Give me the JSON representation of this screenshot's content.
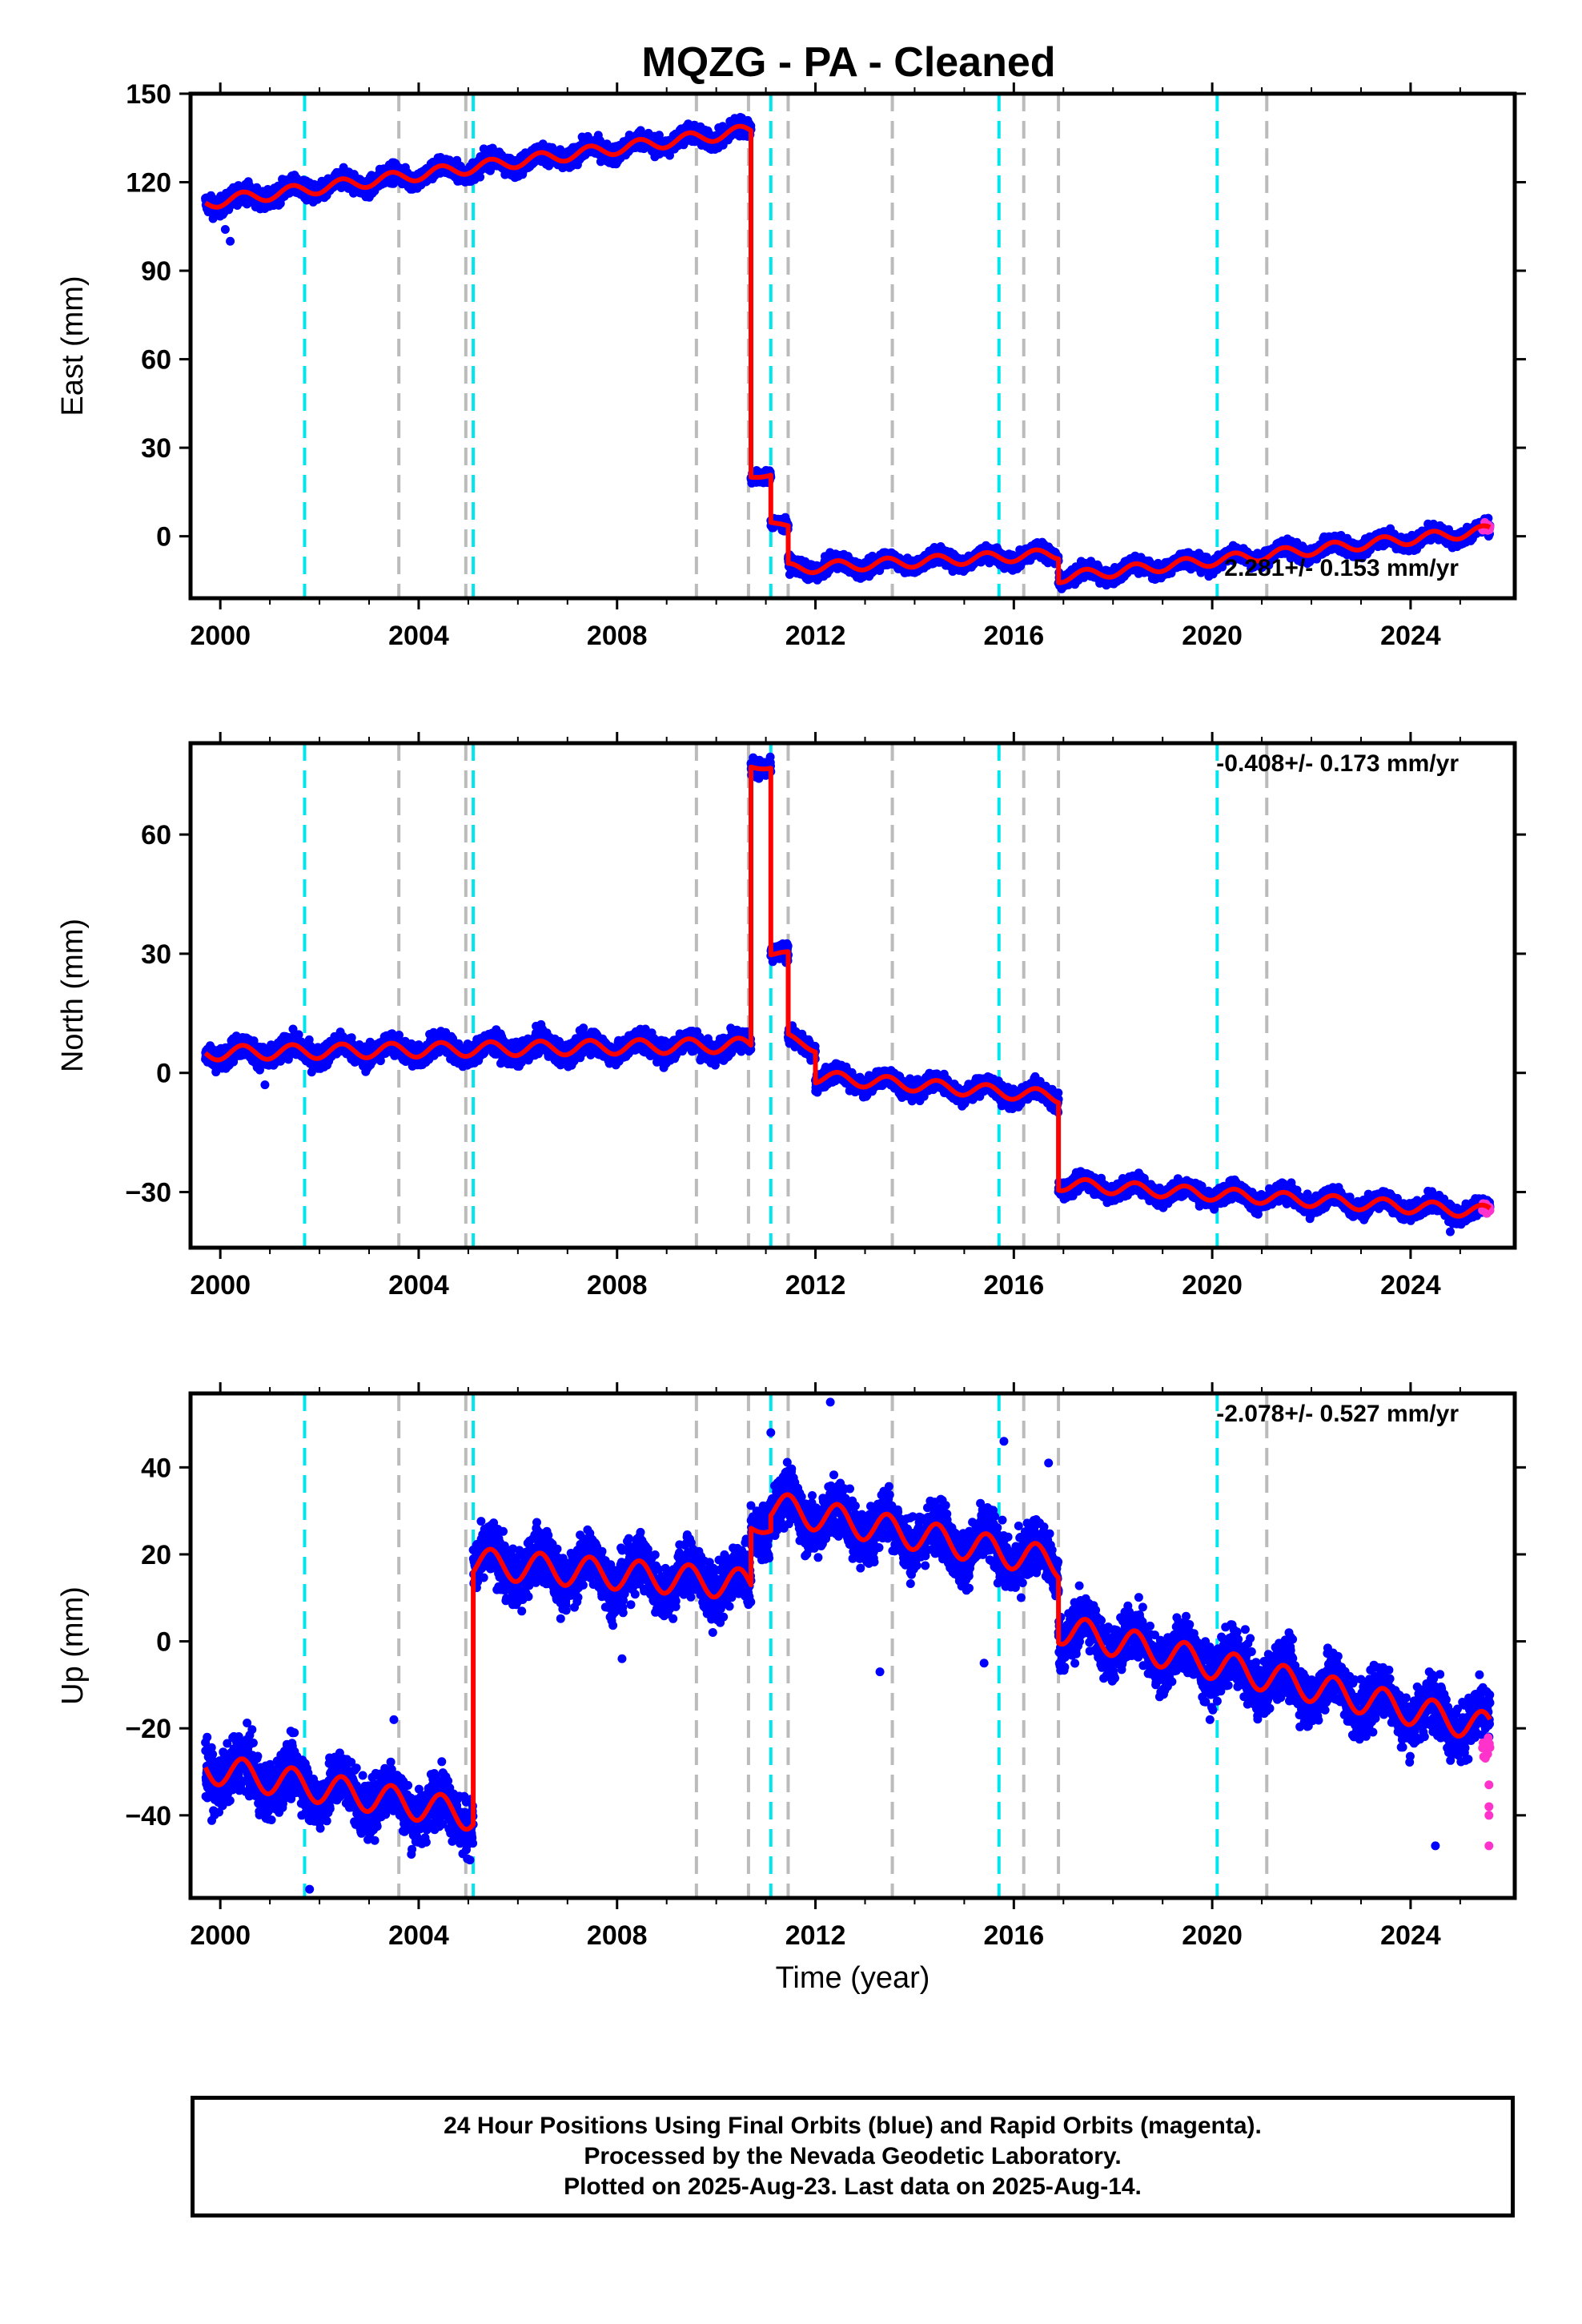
{
  "title": "MQZG  - PA - Cleaned",
  "colors": {
    "final": "#0000ff",
    "rapid": "#ff33cc",
    "model": "#ff0000",
    "equipment": "#00e5ee",
    "event": "#bbbbbb"
  },
  "footer": {
    "line1": "24 Hour Positions Using Final Orbits (blue) and Rapid Orbits (magenta).",
    "line2": "Processed by the Nevada Geodetic Laboratory.",
    "line3": "Plotted on 2025-Aug-23. Last data on 2025-Aug-14."
  },
  "chart_data": [
    {
      "type": "scatter",
      "ylabel": "East (mm)",
      "xlabel": "",
      "xlim": [
        1999.4,
        2026.1
      ],
      "ylim": [
        -21,
        150
      ],
      "xticks": [
        2000,
        2004,
        2008,
        2012,
        2016,
        2020,
        2024
      ],
      "yticks": [
        0,
        30,
        60,
        90,
        120,
        150
      ],
      "rate_text": "2.281+/- 0.153 mm/yr",
      "equipment_changes": [
        2001.7,
        2005.1,
        2011.1,
        2015.7,
        2020.1
      ],
      "events": [
        2003.6,
        2004.95,
        2009.6,
        2010.65,
        2011.45,
        2013.55,
        2016.2,
        2016.9,
        2021.1
      ],
      "model": {
        "segments": [
          {
            "t0": 1999.7,
            "t1": 2010.7,
            "y0": 113,
            "y1": 137.5,
            "amp": 2.0,
            "noise": 2.2
          },
          {
            "t0": 2010.7,
            "t1": 2011.1,
            "y0": 20,
            "y1": 21,
            "amp": 0.5,
            "noise": 1.5
          },
          {
            "t0": 2011.1,
            "t1": 2011.45,
            "y0": 5,
            "y1": 3,
            "amp": 0.5,
            "noise": 1.5
          },
          {
            "t0": 2011.45,
            "t1": 2016.9,
            "y0": -11,
            "y1": -6,
            "amp": 1.8,
            "noise": 1.8
          },
          {
            "t0": 2016.9,
            "t1": 2025.6,
            "y0": -14,
            "y1": 2,
            "amp": 1.8,
            "noise": 1.8
          }
        ],
        "outliers": [
          [
            2000.2,
            100
          ],
          [
            2000.1,
            104
          ]
        ]
      },
      "rapid": {
        "t0": 2025.45,
        "t1": 2025.6,
        "y": 3,
        "spread": 2
      }
    },
    {
      "type": "scatter",
      "ylabel": "North (mm)",
      "xlabel": "",
      "xlim": [
        1999.4,
        2026.1
      ],
      "ylim": [
        -44,
        83
      ],
      "xticks": [
        2000,
        2004,
        2008,
        2012,
        2016,
        2020,
        2024
      ],
      "yticks": [
        -30,
        0,
        30,
        60
      ],
      "rate_text": "-0.408+/- 0.173 mm/yr",
      "equipment_changes": [
        2001.7,
        2005.1,
        2011.1,
        2015.7,
        2020.1
      ],
      "events": [
        2003.6,
        2004.95,
        2009.6,
        2010.65,
        2011.45,
        2013.55,
        2016.2,
        2016.9,
        2021.1
      ],
      "model": {
        "segments": [
          {
            "t0": 1999.7,
            "t1": 2010.7,
            "y0": 5,
            "y1": 7,
            "amp": 1.8,
            "noise": 2.0
          },
          {
            "t0": 2010.7,
            "t1": 2011.1,
            "y0": 77,
            "y1": 77,
            "amp": 0.5,
            "noise": 1.5
          },
          {
            "t0": 2011.1,
            "t1": 2011.45,
            "y0": 30,
            "y1": 30,
            "amp": 0.5,
            "noise": 1.5
          },
          {
            "t0": 2011.45,
            "t1": 2012.0,
            "y0": 9,
            "y1": 6,
            "amp": 0.8,
            "noise": 1.5
          },
          {
            "t0": 2012.0,
            "t1": 2016.9,
            "y0": -1,
            "y1": -6,
            "amp": 1.6,
            "noise": 1.6
          },
          {
            "t0": 2016.9,
            "t1": 2025.6,
            "y0": -28,
            "y1": -35,
            "amp": 1.6,
            "noise": 1.6
          }
        ],
        "outliers": [
          [
            2000.9,
            -3
          ],
          [
            2024.8,
            -40
          ]
        ]
      },
      "rapid": {
        "t0": 2025.45,
        "t1": 2025.6,
        "y": -34,
        "spread": 2
      }
    },
    {
      "type": "scatter",
      "ylabel": "Up (mm)",
      "xlabel": "Time (year)",
      "xlim": [
        1999.4,
        2026.1
      ],
      "ylim": [
        -59,
        57
      ],
      "xticks": [
        2000,
        2004,
        2008,
        2012,
        2016,
        2020,
        2024
      ],
      "yticks": [
        -40,
        -20,
        0,
        20,
        40
      ],
      "rate_text": "-2.078+/- 0.527 mm/yr",
      "equipment_changes": [
        2001.7,
        2005.1,
        2011.1,
        2015.7,
        2020.1
      ],
      "events": [
        2003.6,
        2004.95,
        2009.6,
        2010.65,
        2011.45,
        2013.55,
        2016.2,
        2016.9,
        2021.1
      ],
      "model": {
        "segments": [
          {
            "t0": 1999.7,
            "t1": 2005.1,
            "y0": -29,
            "y1": -40,
            "amp": 3.5,
            "noise": 4.5
          },
          {
            "t0": 2005.1,
            "t1": 2010.7,
            "y0": 18,
            "y1": 13,
            "amp": 3.5,
            "noise": 4.5
          },
          {
            "t0": 2010.7,
            "t1": 2011.1,
            "y0": 26,
            "y1": 26,
            "amp": 1.0,
            "noise": 4.0
          },
          {
            "t0": 2011.1,
            "t1": 2016.9,
            "y0": 31,
            "y1": 18,
            "amp": 3.5,
            "noise": 4.5
          },
          {
            "t0": 2016.9,
            "t1": 2025.6,
            "y0": 3,
            "y1": -20,
            "amp": 3.5,
            "noise": 4.5
          }
        ],
        "outliers": [
          [
            2012.3,
            55
          ],
          [
            2011.1,
            48
          ],
          [
            2008.1,
            -4
          ],
          [
            2013.3,
            -7
          ],
          [
            2015.4,
            -5
          ],
          [
            2001.8,
            -57
          ],
          [
            2003.5,
            -18
          ],
          [
            2024.5,
            -47
          ],
          [
            2016.7,
            41
          ],
          [
            2015.8,
            46
          ]
        ]
      },
      "rapid": {
        "t0": 2025.45,
        "t1": 2025.6,
        "y": -25,
        "spread": 4,
        "extra": [
          -33,
          -38,
          -40,
          -47
        ]
      }
    }
  ]
}
